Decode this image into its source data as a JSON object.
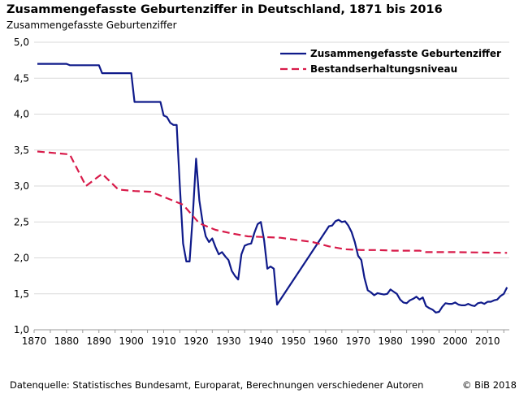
{
  "chart_data": {
    "type": "line",
    "title": "Zusammengefasste Geburtenziffer in Deutschland, 1871 bis 2016",
    "ylabel": "Zusammengefasste Geburtenziffer",
    "xlabel": "",
    "xlim": [
      1870,
      2016
    ],
    "ylim": [
      1.0,
      5.0
    ],
    "x_ticks": [
      "1870",
      "1880",
      "1890",
      "1900",
      "1910",
      "1920",
      "1930",
      "1940",
      "1950",
      "1960",
      "1970",
      "1980",
      "1990",
      "2000",
      "2010"
    ],
    "y_ticks": [
      "1,0",
      "1,5",
      "2,0",
      "2,5",
      "3,0",
      "3,5",
      "4,0",
      "4,5",
      "5,0"
    ],
    "grid": "horizontal",
    "legend_position": "top-right",
    "series": [
      {
        "name": "Zusammengefasste Geburtenziffer",
        "color": "#0f1a8a",
        "style": "solid",
        "x": [
          1871,
          1880,
          1881,
          1890,
          1891,
          1900,
          1901,
          1909,
          1910,
          1911,
          1912,
          1913,
          1914,
          1915,
          1916,
          1917,
          1918,
          1919,
          1920,
          1921,
          1922,
          1923,
          1924,
          1925,
          1926,
          1927,
          1928,
          1929,
          1930,
          1931,
          1932,
          1933,
          1934,
          1935,
          1936,
          1937,
          1938,
          1939,
          1940,
          1941,
          1942,
          1943,
          1944,
          1945,
          1961,
          1962,
          1963,
          1964,
          1965,
          1966,
          1967,
          1968,
          1969,
          1970,
          1971,
          1972,
          1973,
          1974,
          1975,
          1976,
          1977,
          1978,
          1979,
          1980,
          1981,
          1982,
          1983,
          1984,
          1985,
          1986,
          1987,
          1988,
          1989,
          1990,
          1991,
          1992,
          1993,
          1994,
          1995,
          1996,
          1997,
          1998,
          1999,
          2000,
          2001,
          2002,
          2003,
          2004,
          2005,
          2006,
          2007,
          2008,
          2009,
          2010,
          2011,
          2012,
          2013,
          2014,
          2015,
          2016
        ],
        "y": [
          4.7,
          4.7,
          4.68,
          4.68,
          4.57,
          4.57,
          4.17,
          4.17,
          3.98,
          3.96,
          3.88,
          3.85,
          3.85,
          3.0,
          2.2,
          1.95,
          1.95,
          2.6,
          3.38,
          2.8,
          2.5,
          2.3,
          2.22,
          2.27,
          2.15,
          2.05,
          2.08,
          2.02,
          1.97,
          1.82,
          1.75,
          1.7,
          2.05,
          2.17,
          2.19,
          2.2,
          2.35,
          2.47,
          2.5,
          2.25,
          1.85,
          1.88,
          1.85,
          1.35,
          2.44,
          2.45,
          2.51,
          2.53,
          2.5,
          2.51,
          2.45,
          2.36,
          2.22,
          2.03,
          1.97,
          1.72,
          1.55,
          1.52,
          1.48,
          1.51,
          1.5,
          1.49,
          1.5,
          1.56,
          1.53,
          1.5,
          1.42,
          1.38,
          1.37,
          1.41,
          1.43,
          1.46,
          1.42,
          1.45,
          1.33,
          1.3,
          1.28,
          1.24,
          1.25,
          1.32,
          1.37,
          1.36,
          1.36,
          1.38,
          1.35,
          1.34,
          1.34,
          1.36,
          1.34,
          1.33,
          1.37,
          1.38,
          1.36,
          1.39,
          1.39,
          1.41,
          1.42,
          1.47,
          1.5,
          1.59
        ]
      },
      {
        "name": "Bestandserhaltungsniveau",
        "color": "#d81b4a",
        "style": "dashed",
        "x": [
          1871,
          1881,
          1886,
          1891,
          1896,
          1901,
          1906,
          1911,
          1916,
          1921,
          1926,
          1931,
          1936,
          1946,
          1956,
          1961,
          1966,
          1971,
          1976,
          1981,
          1986,
          1989,
          1991,
          2000,
          2016
        ],
        "y": [
          3.48,
          3.44,
          3.0,
          3.17,
          2.95,
          2.93,
          2.92,
          2.83,
          2.74,
          2.48,
          2.39,
          2.34,
          2.3,
          2.28,
          2.22,
          2.16,
          2.12,
          2.11,
          2.11,
          2.1,
          2.1,
          2.1,
          2.08,
          2.08,
          2.07
        ]
      }
    ]
  },
  "footer": {
    "source": "Datenquelle: Statistisches Bundesamt, Europarat, Berechnungen verschiedener Autoren",
    "copyright": "© BiB 2018"
  }
}
